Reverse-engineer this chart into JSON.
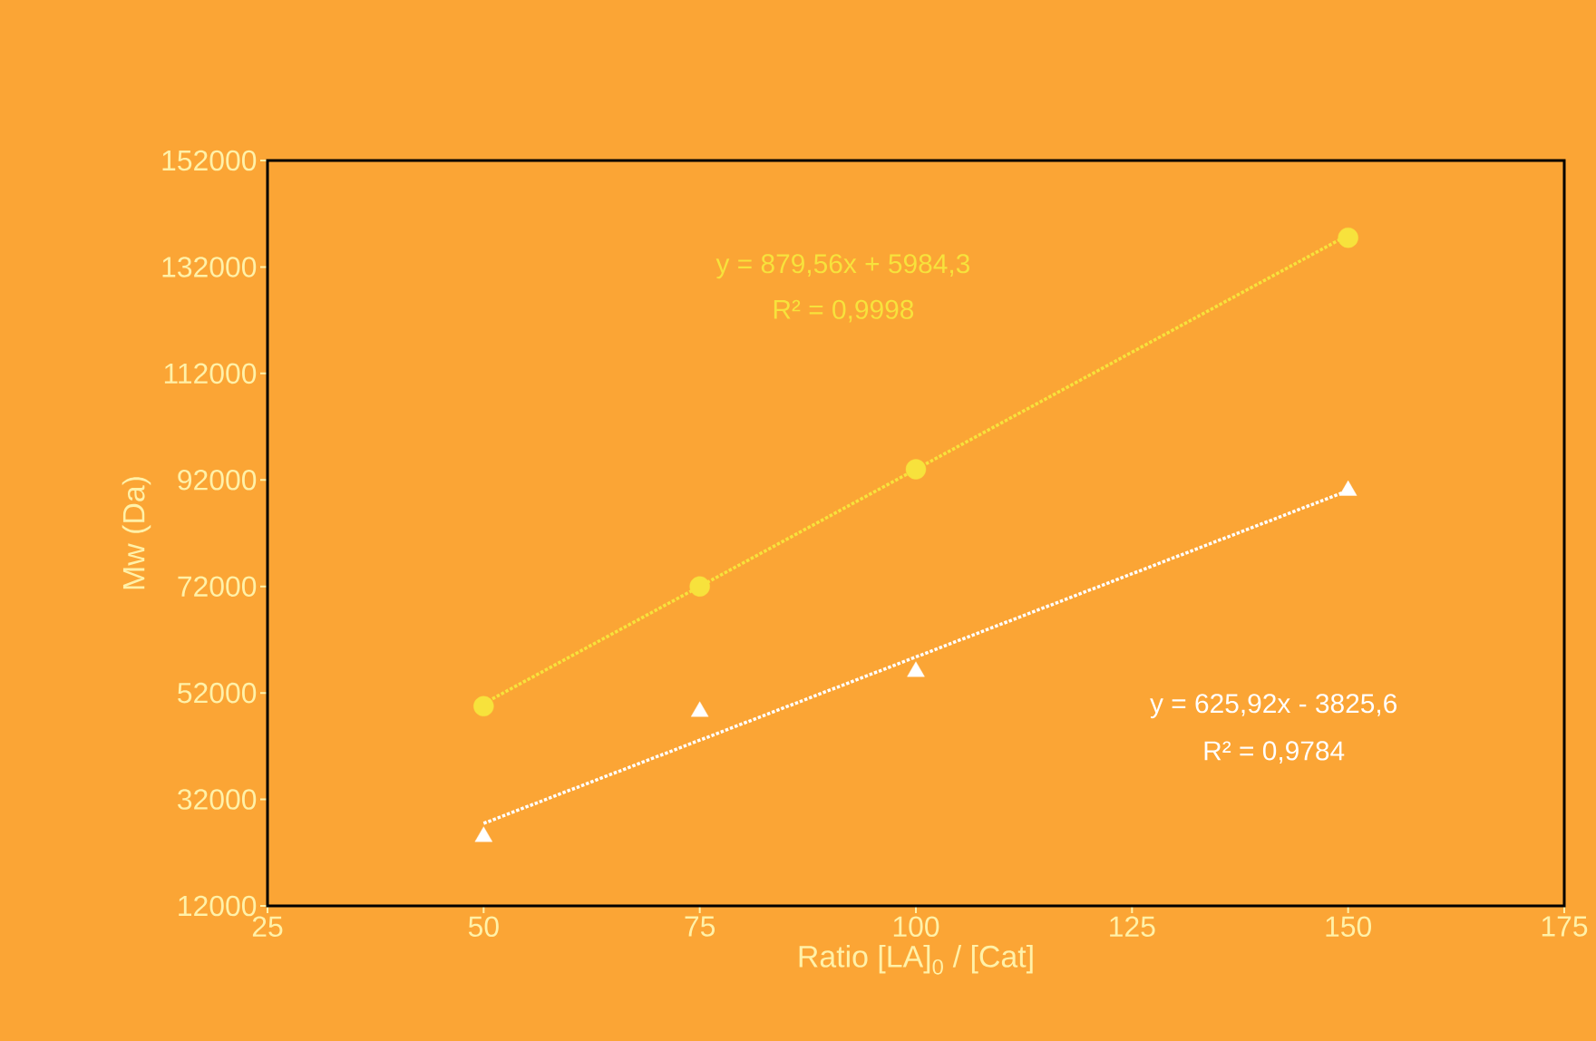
{
  "chart_data": {
    "type": "scatter",
    "xlabel": "Ratio [LA]$_{0}$ / [Cat]",
    "ylabel": "Mw (Da)",
    "xlim": [
      25,
      175
    ],
    "xticks": [
      25,
      50,
      75,
      100,
      125,
      150,
      175
    ],
    "ylim": [
      12000,
      152000
    ],
    "yticks": [
      12000,
      32000,
      52000,
      72000,
      92000,
      112000,
      132000,
      152000
    ],
    "grid": false,
    "series": [
      {
        "marker": "circle",
        "color": "#f7e23c",
        "x": [
          50,
          75,
          100,
          150
        ],
        "values": [
          49500,
          72000,
          94000,
          137500
        ]
      },
      {
        "marker": "triangle",
        "color": "#ffffff",
        "x": [
          50,
          75,
          100,
          150
        ],
        "values": [
          25000,
          48500,
          56000,
          90000
        ]
      },
      {
        "type": "line",
        "marker": "none",
        "line_style": "dotted",
        "color": "#f7e23c",
        "x": [
          50,
          150
        ],
        "values": [
          50000,
          138000
        ]
      },
      {
        "type": "line",
        "marker": "none",
        "line_style": "dotted",
        "color": "#ffffff",
        "x": [
          50,
          150
        ],
        "values": [
          27500,
          90000
        ]
      }
    ],
    "annotations": [
      "y = 879,56x + 5984,3",
      "R² = 0,9998",
      "y = 625,92x - 3825,6",
      "R² = 0,9784"
    ]
  }
}
